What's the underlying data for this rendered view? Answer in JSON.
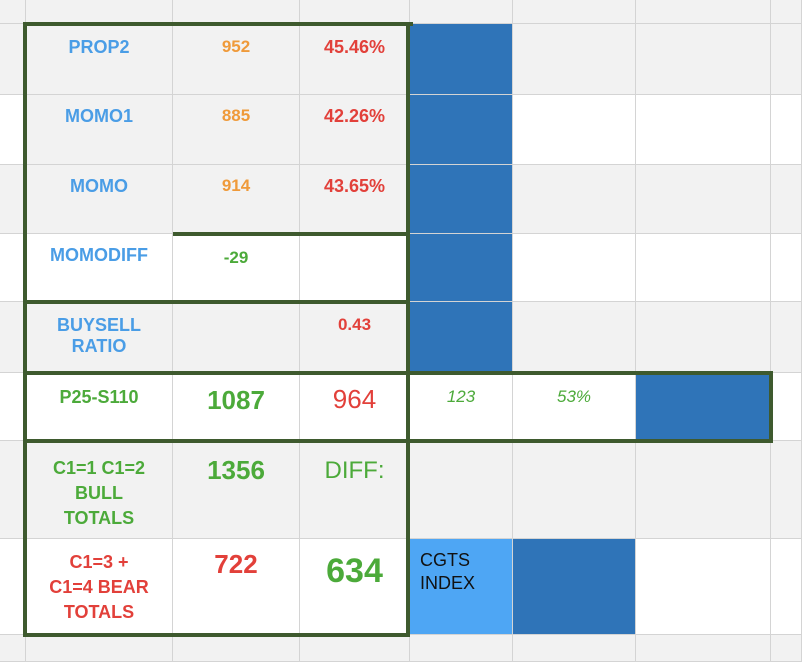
{
  "rows": {
    "prop2": {
      "label": "PROP2",
      "value": "952",
      "percent": "45.46%"
    },
    "momo1": {
      "label": "MOMO1",
      "value": "885",
      "percent": "42.26%"
    },
    "momo": {
      "label": "MOMO",
      "value": "914",
      "percent": "43.65%"
    },
    "momodiff": {
      "label": "MOMODIFF",
      "value": "-29"
    },
    "buysell": {
      "label": "BUYSELL\nRATIO",
      "ratio": "0.43"
    },
    "p25": {
      "label": "P25-S110",
      "total": "1087",
      "count": "964",
      "diff": "123",
      "percent": "53%"
    },
    "bull": {
      "label": "C1=1 C1=2\nBULL\nTOTALS",
      "value": "1356",
      "diff_label": "DIFF:"
    },
    "bear": {
      "label": "C1=3 +\nC1=4 BEAR\nTOTALS",
      "value": "722",
      "diff_value": "634",
      "index_label": "CGTS\nINDEX"
    }
  },
  "colors": {
    "label_blue": "#4a9de6",
    "value_orange": "#ef9a3a",
    "value_red": "#e2403a",
    "value_green": "#4caa3a",
    "fill_blue": "#2f74b8",
    "fill_light_blue": "#4ea6f4",
    "border_green": "#3e5a2e"
  }
}
